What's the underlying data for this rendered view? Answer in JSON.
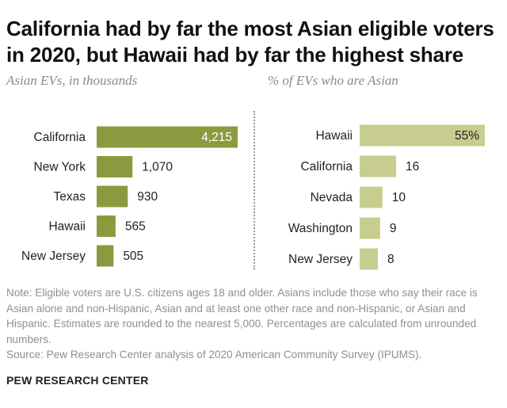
{
  "title": "California had by far the most Asian eligible voters in 2020, but Hawaii had by far the highest share",
  "colors": {
    "left_bar": "#8c9a3f",
    "right_bar": "#c7cd8e",
    "inside_label": "#ffffff",
    "label": "#222222"
  },
  "chart_data": [
    {
      "type": "bar",
      "orientation": "horizontal",
      "title": "Asian EVs, in thousands",
      "categories": [
        "California",
        "New York",
        "Texas",
        "Hawaii",
        "New Jersey"
      ],
      "values": [
        4215,
        1070,
        930,
        565,
        505
      ],
      "labels": [
        "4,215",
        "1,070",
        "930",
        "565",
        "505"
      ],
      "xlim": [
        0,
        4215
      ]
    },
    {
      "type": "bar",
      "orientation": "horizontal",
      "title": "% of EVs who are Asian",
      "categories": [
        "Hawaii",
        "California",
        "Nevada",
        "Washington",
        "New Jersey"
      ],
      "values": [
        55,
        16,
        10,
        9,
        8
      ],
      "labels": [
        "55%",
        "16",
        "10",
        "9",
        "8"
      ],
      "xlim": [
        0,
        55
      ]
    }
  ],
  "notes": {
    "note": "Note: Eligible voters are U.S. citizens ages 18 and older. Asians include those who say their race is Asian alone and non-Hispanic, Asian and at least one other race and non-Hispanic, or Asian and Hispanic. Estimates are rounded to the nearest 5,000. Percentages are calculated from unrounded numbers.",
    "source": "Source: Pew Research Center analysis of 2020 American Community Survey (IPUMS)."
  },
  "brand": "PEW RESEARCH CENTER"
}
